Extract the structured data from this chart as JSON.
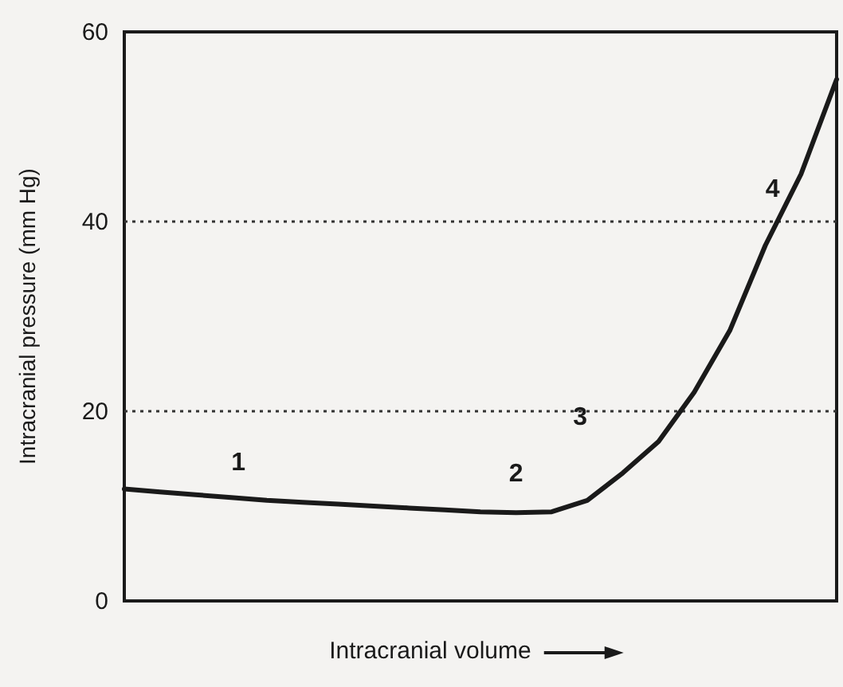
{
  "chart_data": {
    "type": "line",
    "xlabel": "Intracranial volume",
    "ylabel": "Intracranial pressure (mm Hg)",
    "categories": [
      null,
      null,
      null,
      null,
      null,
      null,
      null,
      null,
      null,
      null,
      null,
      null,
      null,
      null,
      null,
      null,
      null,
      null,
      null,
      null,
      null
    ],
    "series": [
      {
        "color": "#1a1a1a",
        "values": [
          11.8,
          11.5,
          11.2,
          10.9,
          10.6,
          10.4,
          10.2,
          10,
          9.8,
          9.6,
          9.4,
          9.3,
          9.4,
          10.6,
          13.5,
          16.8,
          22,
          28.5,
          37.5,
          45,
          55
        ]
      }
    ],
    "ylim": [
      0,
      60
    ],
    "yticks": [
      0,
      20,
      40,
      60
    ],
    "grid": false,
    "marker": "none",
    "line_style": "solid",
    "ref_lines": [
      {
        "axis": "y",
        "value": 20,
        "line_style": "dotted",
        "color": "#333333"
      },
      {
        "axis": "y",
        "value": 40,
        "line_style": "dotted",
        "color": "#333333"
      }
    ],
    "annotations": [
      "1",
      "2",
      "3",
      "4"
    ]
  }
}
